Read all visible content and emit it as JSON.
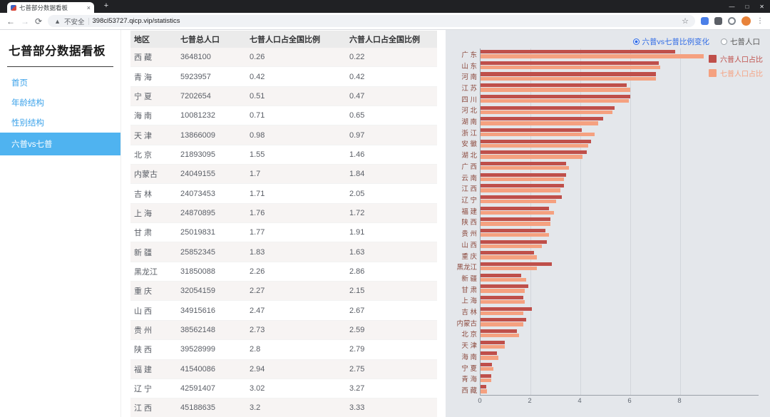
{
  "browser": {
    "tab_title": "七普部分数据看板",
    "security_label": "不安全",
    "url": "398cl53727.qicp.vip/statistics"
  },
  "sidebar": {
    "title": "七普部分数据看板",
    "items": [
      {
        "id": "home",
        "label": "首页",
        "active": false
      },
      {
        "id": "age-structure",
        "label": "年龄结构",
        "active": false
      },
      {
        "id": "gender-structure",
        "label": "性别结构",
        "active": false
      },
      {
        "id": "liupu-vs-qipu",
        "label": "六普vs七普",
        "active": true
      }
    ],
    "active_bg_color": "#4fb3f0",
    "link_color": "#3ba2ea"
  },
  "table": {
    "headers": [
      "地区",
      "七普总人口",
      "七普人口占全国比例",
      "六普人口占全国比例"
    ],
    "rows": [
      [
        "西 藏",
        "3648100",
        "0.26",
        "0.22"
      ],
      [
        "青 海",
        "5923957",
        "0.42",
        "0.42"
      ],
      [
        "宁 夏",
        "7202654",
        "0.51",
        "0.47"
      ],
      [
        "海 南",
        "10081232",
        "0.71",
        "0.65"
      ],
      [
        "天 津",
        "13866009",
        "0.98",
        "0.97"
      ],
      [
        "北 京",
        "21893095",
        "1.55",
        "1.46"
      ],
      [
        "内蒙古",
        "24049155",
        "1.7",
        "1.84"
      ],
      [
        "吉 林",
        "24073453",
        "1.71",
        "2.05"
      ],
      [
        "上 海",
        "24870895",
        "1.76",
        "1.72"
      ],
      [
        "甘 肃",
        "25019831",
        "1.77",
        "1.91"
      ],
      [
        "新 疆",
        "25852345",
        "1.83",
        "1.63"
      ],
      [
        "黑龙江",
        "31850088",
        "2.26",
        "2.86"
      ],
      [
        "重 庆",
        "32054159",
        "2.27",
        "2.15"
      ],
      [
        "山 西",
        "34915616",
        "2.47",
        "2.67"
      ],
      [
        "贵 州",
        "38562148",
        "2.73",
        "2.59"
      ],
      [
        "陕 西",
        "39528999",
        "2.8",
        "2.79"
      ],
      [
        "福 建",
        "41540086",
        "2.94",
        "2.75"
      ],
      [
        "辽 宁",
        "42591407",
        "3.02",
        "3.27"
      ],
      [
        "江 西",
        "45188635",
        "3.2",
        "3.33"
      ]
    ]
  },
  "chart_controls": {
    "radios": [
      {
        "id": "ratio-change",
        "label": "六普vs七普比例变化",
        "selected": true
      },
      {
        "id": "qipu-population",
        "label": "七普人口",
        "selected": false
      }
    ]
  },
  "chart_data": {
    "type": "bar",
    "orientation": "horizontal",
    "categories": [
      "广 东",
      "山 东",
      "河 南",
      "江 苏",
      "四 川",
      "河 北",
      "湖 南",
      "浙 江",
      "安 徽",
      "湖 北",
      "广 西",
      "云 南",
      "江 西",
      "辽 宁",
      "福 建",
      "陕 西",
      "贵 州",
      "山 西",
      "重 庆",
      "黑龙江",
      "新 疆",
      "甘 肃",
      "上 海",
      "吉 林",
      "内蒙古",
      "北 京",
      "天 津",
      "海 南",
      "宁 夏",
      "青 海",
      "西 藏"
    ],
    "series": [
      {
        "name": "六普人口占比",
        "color": "#bf4f4a",
        "values": [
          7.79,
          7.15,
          7.02,
          5.87,
          6.0,
          5.36,
          4.9,
          4.06,
          4.44,
          4.27,
          3.43,
          3.43,
          3.33,
          3.27,
          2.75,
          2.79,
          2.59,
          2.67,
          2.15,
          2.86,
          1.63,
          1.91,
          1.72,
          2.05,
          1.84,
          1.46,
          0.97,
          0.65,
          0.47,
          0.42,
          0.22
        ]
      },
      {
        "name": "七普人口占比",
        "color": "#f5a180",
        "values": [
          8.93,
          7.19,
          7.04,
          6.0,
          5.93,
          5.28,
          4.71,
          4.57,
          4.32,
          4.09,
          3.55,
          3.34,
          3.2,
          3.02,
          2.94,
          2.8,
          2.73,
          2.47,
          2.27,
          2.26,
          1.83,
          1.77,
          1.76,
          1.71,
          1.7,
          1.55,
          0.98,
          0.71,
          0.51,
          0.42,
          0.26
        ]
      }
    ],
    "x_ticks": [
      0,
      2,
      4,
      6,
      8
    ],
    "xlim": [
      0,
      9.4
    ],
    "grid": true,
    "legend_position": "top-right",
    "axis_label_color": "#8c4b3f"
  }
}
